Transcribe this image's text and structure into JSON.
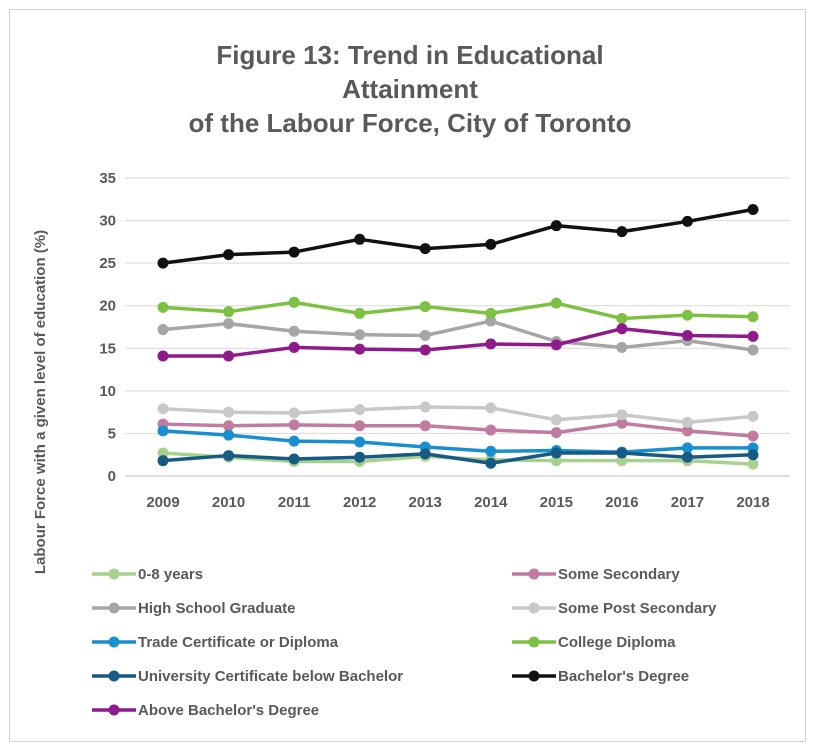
{
  "chart_data": {
    "type": "line",
    "title": "Figure 13: Trend in Educational Attainment of the Labour Force, City of Toronto",
    "title_lines": [
      "Figure 13: Trend in Educational Attainment",
      "of the Labour Force, City of Toronto"
    ],
    "xlabel": "",
    "ylabel": "Labour Force with a given level of education (%)",
    "ylim": [
      0,
      35
    ],
    "yticks": [
      0,
      5,
      10,
      15,
      20,
      25,
      30,
      35
    ],
    "grid": true,
    "legend_position": "bottom",
    "x": [
      "2009",
      "2010",
      "2011",
      "2012",
      "2013",
      "2014",
      "2015",
      "2016",
      "2017",
      "2018"
    ],
    "series": [
      {
        "name": "0-8 years",
        "color": "#a9d18e",
        "values": [
          2.7,
          2.2,
          1.7,
          1.7,
          2.3,
          1.9,
          1.8,
          1.8,
          1.8,
          1.4
        ]
      },
      {
        "name": "Some Secondary",
        "color": "#c27ba0",
        "values": [
          6.1,
          5.9,
          6.0,
          5.9,
          5.9,
          5.4,
          5.1,
          6.2,
          5.3,
          4.7
        ]
      },
      {
        "name": "High School Graduate",
        "color": "#a6a6a6",
        "values": [
          17.2,
          17.9,
          17.0,
          16.6,
          16.5,
          18.2,
          15.8,
          15.1,
          15.9,
          14.8
        ]
      },
      {
        "name": "Some Post Secondary",
        "color": "#c8c8c8",
        "values": [
          7.9,
          7.5,
          7.4,
          7.8,
          8.1,
          8.0,
          6.6,
          7.2,
          6.3,
          7.0
        ]
      },
      {
        "name": "Trade Certificate or Diploma",
        "color": "#1a8fcf",
        "values": [
          5.3,
          4.8,
          4.1,
          4.0,
          3.4,
          2.9,
          3.0,
          2.8,
          3.3,
          3.3
        ]
      },
      {
        "name": "College Diploma",
        "color": "#7dc143",
        "values": [
          19.8,
          19.3,
          20.4,
          19.1,
          19.9,
          19.1,
          20.3,
          18.5,
          18.9,
          18.7
        ]
      },
      {
        "name": "University Certificate below Bachelor",
        "color": "#175a84",
        "values": [
          1.8,
          2.4,
          2.0,
          2.2,
          2.6,
          1.5,
          2.7,
          2.7,
          2.2,
          2.5
        ]
      },
      {
        "name": "Bachelor's Degree",
        "color": "#111111",
        "values": [
          25.0,
          26.0,
          26.3,
          27.8,
          26.7,
          27.2,
          29.4,
          28.7,
          29.9,
          31.3
        ]
      },
      {
        "name": "Above Bachelor's Degree",
        "color": "#8e1a8b",
        "values": [
          14.1,
          14.1,
          15.1,
          14.9,
          14.8,
          15.5,
          15.4,
          17.3,
          16.5,
          16.4
        ]
      }
    ]
  }
}
